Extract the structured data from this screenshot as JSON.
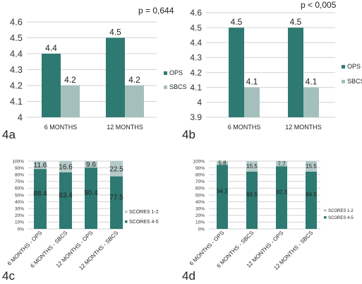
{
  "p_values": {
    "a": "p = 0,644",
    "b": "p < 0,005"
  },
  "panel_labels": {
    "a": "4a",
    "b": "4b",
    "c": "4c",
    "d": "4d"
  },
  "colors": {
    "teal": "#2e7a72",
    "light": "#a4c0bc",
    "light_stacked": "#b4cbc8",
    "grid": "#d2d2d2"
  },
  "chart_data": [
    {
      "type": "bar",
      "panel": "4a",
      "categories": [
        "6 MONTHS",
        "12 MONTHS"
      ],
      "series": [
        {
          "name": "OPS",
          "values": [
            4.4,
            4.5
          ],
          "labels": [
            "4.4",
            "4.5"
          ]
        },
        {
          "name": "SBCS",
          "values": [
            4.2,
            4.2
          ],
          "labels": [
            "4.2",
            "4.2"
          ]
        }
      ],
      "yticks": [
        "4",
        "4.1",
        "4.2",
        "4.3",
        "4.4",
        "4.5",
        "4.6"
      ],
      "ylim": [
        4,
        4.6
      ],
      "legend": "right",
      "grid": true
    },
    {
      "type": "bar",
      "panel": "4b",
      "categories": [
        "6 MONTHS",
        "12 MONTHS"
      ],
      "series": [
        {
          "name": "OPS",
          "values": [
            4.5,
            4.5
          ],
          "labels": [
            "4.5",
            "4.5"
          ]
        },
        {
          "name": "SBCS",
          "values": [
            4.1,
            4.1
          ],
          "labels": [
            "4.1",
            "4.1"
          ]
        }
      ],
      "yticks": [
        "3.9",
        "4",
        "4.1",
        "4.2",
        "4.3",
        "4.4",
        "4.5",
        "4.6"
      ],
      "ylim": [
        3.9,
        4.6
      ],
      "legend": "right",
      "grid": true
    },
    {
      "type": "bar",
      "stacked": true,
      "panel": "4c",
      "categories": [
        "6 MONTHS - OPS",
        "6 MONTHS - SBCS",
        "12 MONTHS - OPS",
        "12 MONTHS - SBCS"
      ],
      "series": [
        {
          "name": "SCORES 4-5",
          "values": [
            88.4,
            83.4,
            90.4,
            77.5
          ],
          "labels": [
            "88.4",
            "83.4",
            "90.4",
            "77.5"
          ]
        },
        {
          "name": "SCORES 1-2",
          "values": [
            11.6,
            16.6,
            9.6,
            22.5
          ],
          "labels": [
            "11.6",
            "16.6",
            "9.6",
            "22.5"
          ]
        }
      ],
      "legend_order": [
        "SCORES 1-2",
        "SCORES 4-5"
      ],
      "yticks": [
        "0%",
        "10%",
        "20%",
        "30%",
        "40%",
        "50%",
        "60%",
        "70%",
        "80%",
        "90%",
        "100%"
      ],
      "ylim": [
        0,
        100
      ],
      "legend": "right",
      "grid": true
    },
    {
      "type": "bar",
      "stacked": true,
      "panel": "4d",
      "categories": [
        "6 MONTHS - OPS",
        "6 MONTHS - SBCS",
        "12 MONTHS - OPS",
        "12 MONTHS - SBCS"
      ],
      "series": [
        {
          "name": "SCORES 4-5",
          "values": [
            94.2,
            84.5,
            92.3,
            84.5
          ],
          "labels": [
            "94.2",
            "84.5",
            "92.3",
            "84.5"
          ]
        },
        {
          "name": "SCORES 1-2",
          "values": [
            5.8,
            15.5,
            7.7,
            15.5
          ],
          "labels": [
            "5.8",
            "15.5",
            "7.7",
            "15.5"
          ]
        }
      ],
      "legend_order": [
        "SCORES 1-2",
        "SCORES 4-5"
      ],
      "yticks": [
        "0%",
        "10%",
        "20%",
        "30%",
        "40%",
        "50%",
        "60%",
        "70%",
        "80%",
        "90%",
        "100%"
      ],
      "ylim": [
        0,
        100
      ],
      "legend": "right",
      "grid": true
    }
  ]
}
